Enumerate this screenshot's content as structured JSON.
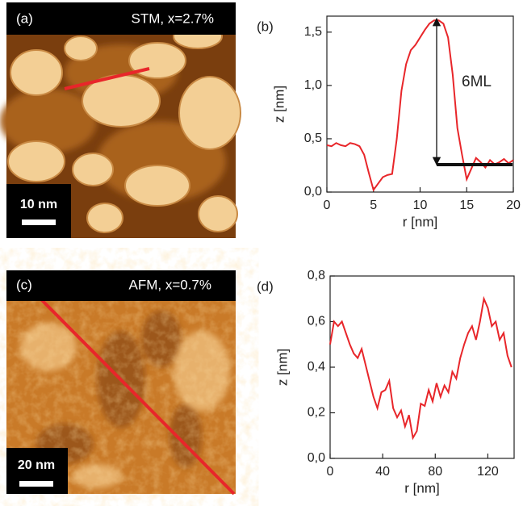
{
  "images": [
    {
      "panel": "(a)",
      "title": "STM, x=2.7%",
      "scale": "10 nm"
    },
    {
      "panel": "(c)",
      "title": "AFM, x=0.7%",
      "scale": "20 nm"
    }
  ],
  "chart_data": [
    {
      "type": "line",
      "panel": "(b)",
      "xlabel": "r [nm]",
      "ylabel": "z [nm]",
      "annotation": "6ML",
      "color": "#e8262a",
      "x": [
        0,
        0.5,
        1,
        1.5,
        2,
        2.5,
        3,
        3.5,
        4,
        4.5,
        5,
        5.5,
        6,
        6.5,
        7,
        7.5,
        8,
        8.5,
        9,
        9.5,
        10,
        10.5,
        11,
        11.5,
        12,
        12.5,
        13,
        13.5,
        14,
        14.5,
        15,
        15.5,
        16,
        16.5,
        17,
        17.5,
        18,
        18.5,
        19,
        19.5,
        20
      ],
      "values": [
        0.44,
        0.43,
        0.46,
        0.44,
        0.43,
        0.46,
        0.45,
        0.43,
        0.35,
        0.18,
        0.02,
        0.08,
        0.14,
        0.16,
        0.17,
        0.5,
        0.95,
        1.2,
        1.33,
        1.38,
        1.45,
        1.52,
        1.58,
        1.61,
        1.61,
        1.58,
        1.45,
        1.1,
        0.6,
        0.35,
        0.12,
        0.22,
        0.32,
        0.28,
        0.23,
        0.3,
        0.26,
        0.28,
        0.31,
        0.27,
        0.3
      ],
      "xlim": [
        0,
        20
      ],
      "ylim": [
        0,
        1.65
      ],
      "xticks": [
        0,
        5,
        10,
        15,
        20
      ],
      "yticks": [
        {
          "value": 0,
          "label": "0,0"
        },
        {
          "value": 0.5,
          "label": "0,5"
        },
        {
          "value": 1,
          "label": "1,0"
        },
        {
          "value": 1.5,
          "label": "1,5"
        }
      ]
    },
    {
      "type": "line",
      "panel": "(d)",
      "xlabel": "r [nm]",
      "ylabel": "z [nm]",
      "color": "#e8262a",
      "x": [
        0,
        3,
        6,
        9,
        12,
        15,
        18,
        21,
        24,
        27,
        30,
        33,
        36,
        39,
        42,
        45,
        48,
        51,
        54,
        57,
        60,
        63,
        66,
        69,
        72,
        75,
        78,
        81,
        84,
        87,
        90,
        93,
        96,
        99,
        102,
        105,
        108,
        111,
        114,
        117,
        120,
        123,
        126,
        129,
        132,
        135,
        138
      ],
      "values": [
        0.5,
        0.6,
        0.58,
        0.6,
        0.55,
        0.5,
        0.46,
        0.44,
        0.48,
        0.41,
        0.34,
        0.27,
        0.22,
        0.29,
        0.3,
        0.34,
        0.22,
        0.18,
        0.21,
        0.14,
        0.19,
        0.09,
        0.12,
        0.24,
        0.23,
        0.3,
        0.25,
        0.33,
        0.27,
        0.32,
        0.29,
        0.38,
        0.35,
        0.44,
        0.5,
        0.55,
        0.58,
        0.52,
        0.6,
        0.7,
        0.66,
        0.58,
        0.6,
        0.52,
        0.55,
        0.45,
        0.4
      ],
      "xlim": [
        0,
        140
      ],
      "ylim": [
        0,
        0.8
      ],
      "xticks": [
        0,
        40,
        80,
        120
      ],
      "yticks": [
        {
          "value": 0,
          "label": "0,0"
        },
        {
          "value": 0.2,
          "label": "0,2"
        },
        {
          "value": 0.4,
          "label": "0,4"
        },
        {
          "value": 0.6,
          "label": "0,6"
        },
        {
          "value": 0.8,
          "label": "0,8"
        }
      ]
    }
  ]
}
